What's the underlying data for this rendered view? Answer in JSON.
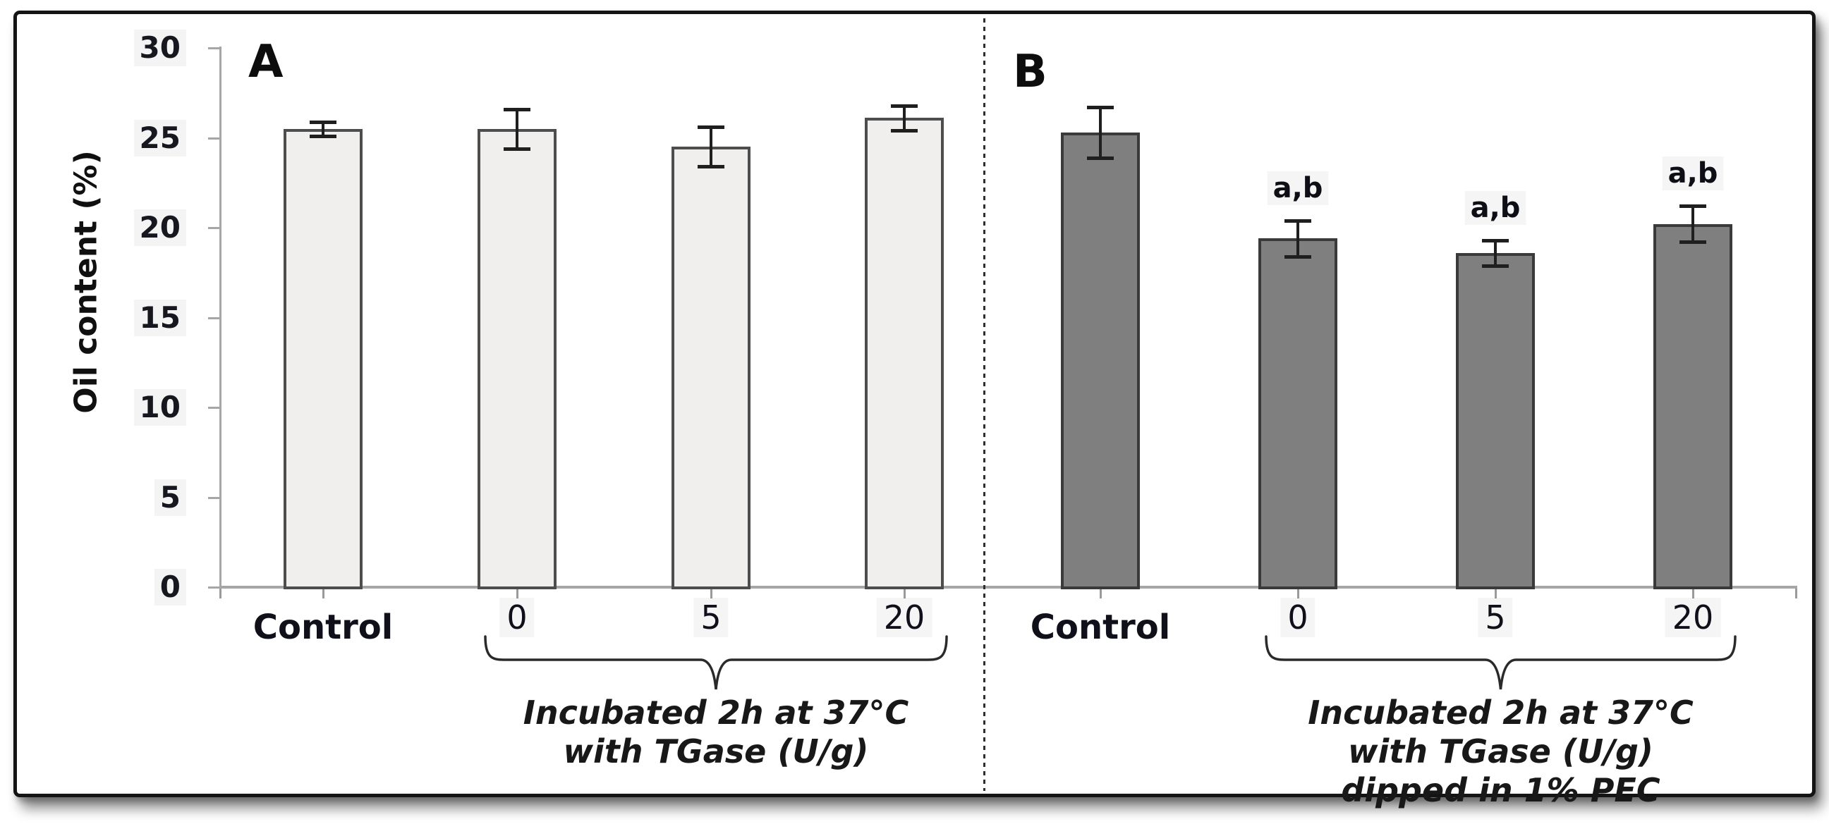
{
  "figure": {
    "panel_divider": "dotted-vertical-line",
    "ylabel": "Oil content (%)",
    "y_ticks": [
      0,
      5,
      10,
      15,
      20,
      25,
      30
    ],
    "ylim": [
      0,
      30
    ],
    "grid": false,
    "frame_border_color": "#141414",
    "axis_color": "#a6a6a6",
    "error_bar_color": "#1f1f1f"
  },
  "chart_data": [
    {
      "type": "bar",
      "panel_label": "A",
      "categories": [
        "Control",
        "0",
        "5",
        "20"
      ],
      "values": [
        25.5,
        25.5,
        24.5,
        26.1
      ],
      "errors": [
        0.4,
        1.1,
        1.1,
        0.7
      ],
      "annotations": [
        "",
        "",
        "",
        ""
      ],
      "bar_fill": "#f0efee",
      "bar_border": "#4d4d4d",
      "grouped_categories": [
        "0",
        "5",
        "20"
      ],
      "group_caption_lines": [
        "Incubated 2h at 37°C",
        "with TGase (U/g)"
      ],
      "xlabel": "",
      "ylabel": "Oil content (%)",
      "ylim": [
        0,
        30
      ],
      "legend": "none"
    },
    {
      "type": "bar",
      "panel_label": "B",
      "categories": [
        "Control",
        "0",
        "5",
        "20"
      ],
      "values": [
        25.3,
        19.4,
        18.6,
        20.2
      ],
      "errors": [
        1.4,
        1.0,
        0.7,
        1.0
      ],
      "annotations": [
        "",
        "a,b",
        "a,b",
        "a,b"
      ],
      "bar_fill": "#7f7f7f",
      "bar_border": "#3a3a3a",
      "grouped_categories": [
        "0",
        "5",
        "20"
      ],
      "group_caption_lines": [
        "Incubated 2h at 37°C",
        "with TGase (U/g)",
        "dipped in 1% PEC"
      ],
      "xlabel": "",
      "ylabel": "Oil content (%)",
      "ylim": [
        0,
        30
      ],
      "legend": "none"
    }
  ]
}
